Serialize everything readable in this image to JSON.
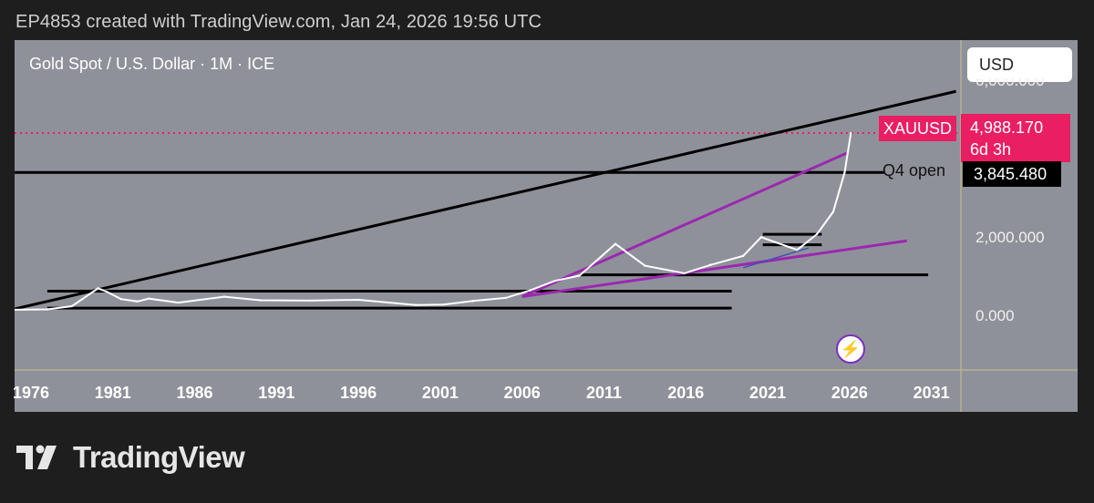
{
  "header": {
    "text": "EP4853 created with TradingView.com, Jan 24, 2026 19:56 UTC"
  },
  "chart": {
    "symbol_title": "Gold Spot / U.S. Dollar · 1M · ICE",
    "currency_button": "USD",
    "price_axis_labels": {
      "top_partial": "6,000.000",
      "mid": "2,000.000",
      "zero": "0.000"
    },
    "ticker_label": "XAUUSD",
    "last_price": "4,988.170",
    "countdown": "6d 3h",
    "q4_label": "Q4 open",
    "q4_price": "3,845.480",
    "colors": {
      "background": "#8f919a",
      "ticker": "#e91e63",
      "trendline": "#9c27b0",
      "price_line": "#e91e63"
    },
    "alert_icon": "lightning-bolt-icon"
  },
  "chart_data": {
    "type": "line",
    "title": "Gold Spot / U.S. Dollar · 1M · ICE",
    "xlabel": "",
    "ylabel": "",
    "x_ticks": [
      "1976",
      "1981",
      "1986",
      "1991",
      "1996",
      "2001",
      "2006",
      "2011",
      "2016",
      "2021",
      "2026",
      "2031"
    ],
    "ylim": [
      -1000,
      6000
    ],
    "series": [
      {
        "name": "XAUUSD",
        "points": [
          [
            1975.0,
            140
          ],
          [
            1977.0,
            150
          ],
          [
            1978.5,
            230
          ],
          [
            1980.1,
            680
          ],
          [
            1980.6,
            600
          ],
          [
            1981.5,
            410
          ],
          [
            1982.5,
            350
          ],
          [
            1983.2,
            420
          ],
          [
            1985.0,
            320
          ],
          [
            1987.8,
            470
          ],
          [
            1990.0,
            380
          ],
          [
            1993.0,
            370
          ],
          [
            1996.0,
            390
          ],
          [
            1999.5,
            260
          ],
          [
            2001.2,
            270
          ],
          [
            2003.0,
            360
          ],
          [
            2005.0,
            440
          ],
          [
            2006.5,
            630
          ],
          [
            2008.0,
            870
          ],
          [
            2009.5,
            1000
          ],
          [
            2011.7,
            1800
          ],
          [
            2013.5,
            1250
          ],
          [
            2015.9,
            1060
          ],
          [
            2017.5,
            1270
          ],
          [
            2019.5,
            1500
          ],
          [
            2020.6,
            1970
          ],
          [
            2022.8,
            1650
          ],
          [
            2024.0,
            2050
          ],
          [
            2025.0,
            2700
          ],
          [
            2025.7,
            3850
          ],
          [
            2026.08,
            4988
          ]
        ]
      }
    ],
    "horizontal_lines": [
      {
        "label": "Q4 open",
        "value": 3845.48
      },
      {
        "value": 4988.17,
        "style": "dotted"
      },
      {
        "value": 1020
      },
      {
        "value": 610
      },
      {
        "value": 180
      }
    ],
    "trend_lines": [
      {
        "from": [
          1975.0,
          160
        ],
        "to": [
          2032.5,
          6200
        ],
        "color": "black"
      },
      {
        "from": [
          2006.0,
          470
        ],
        "to": [
          2025.8,
          4400
        ],
        "color": "purple"
      },
      {
        "from": [
          2006.0,
          470
        ],
        "to": [
          2029.5,
          1880
        ],
        "color": "purple"
      },
      {
        "from": [
          2019.5,
          1200
        ],
        "to": [
          2023.5,
          1700
        ],
        "color": "blue"
      }
    ],
    "grid": false,
    "legend": "none"
  }
}
